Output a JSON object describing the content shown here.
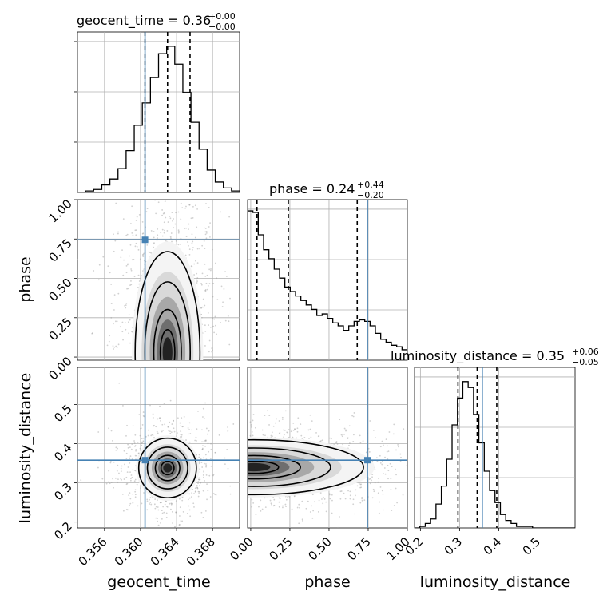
{
  "chart_data": {
    "type": "corner",
    "truth_color": "#4682b4",
    "parameters": [
      "geocent_time",
      "phase",
      "luminosity_distance"
    ],
    "truths": {
      "geocent_time": 0.3605,
      "phase": 0.745,
      "luminosity_distance": 0.358
    },
    "axis_labels": {
      "x": [
        "geocent_time",
        "phase",
        "luminosity_distance"
      ],
      "y": [
        "phase",
        "luminosity_distance"
      ]
    },
    "titles": [
      {
        "prefix": "geocent_time = 0.36",
        "plus": "+0.00",
        "minus": "−0.00"
      },
      {
        "prefix": "phase = 0.24",
        "plus": "+0.44",
        "minus": "−0.20"
      },
      {
        "prefix": "luminosity_distance = 0.35",
        "plus": "+0.06",
        "minus": "−0.05"
      }
    ],
    "ranges": {
      "geocent_time": [
        0.353,
        0.371
      ],
      "phase": [
        -0.02,
        1.0
      ],
      "luminosity_distance": [
        0.185,
        0.595
      ]
    },
    "ticks": {
      "geocent_time": {
        "values": [
          0.356,
          0.36,
          0.364,
          0.368
        ],
        "labels": [
          "0.356",
          "0.360",
          "0.364",
          "0.368"
        ]
      },
      "phase_x": {
        "values": [
          0.0,
          0.25,
          0.5,
          0.75,
          1.0
        ],
        "labels": [
          "0.00",
          "0.25",
          "0.50",
          "0.75",
          "1.00"
        ]
      },
      "phase_y": {
        "values": [
          0.0,
          0.25,
          0.5,
          0.75,
          1.0
        ],
        "labels": [
          "0.00",
          "0.25",
          "0.50",
          "0.75",
          "1.00"
        ]
      },
      "lumdist_x": {
        "values": [
          0.2,
          0.3,
          0.4,
          0.5
        ],
        "labels": [
          "0.2",
          "0.3",
          "0.4",
          "0.5"
        ]
      },
      "lumdist_y": {
        "values": [
          0.2,
          0.3,
          0.4,
          0.5
        ],
        "labels": [
          "0.2",
          "0.3",
          "0.4",
          "0.5"
        ]
      }
    },
    "histograms": [
      {
        "param": "geocent_time",
        "bin_start": 0.353,
        "bin_width": 0.0009,
        "counts": [
          0,
          0.01,
          0.02,
          0.05,
          0.09,
          0.16,
          0.28,
          0.45,
          0.6,
          0.77,
          0.93,
          0.98,
          0.86,
          0.67,
          0.47,
          0.29,
          0.15,
          0.07,
          0.03,
          0.01
        ],
        "quantiles": [
          0.3605,
          0.363,
          0.3655
        ]
      },
      {
        "param": "phase",
        "bin_start": -0.02,
        "bin_width": 0.034,
        "counts": [
          1.0,
          0.99,
          0.84,
          0.74,
          0.68,
          0.61,
          0.55,
          0.49,
          0.46,
          0.43,
          0.4,
          0.37,
          0.34,
          0.3,
          0.31,
          0.28,
          0.25,
          0.23,
          0.2,
          0.23,
          0.26,
          0.27,
          0.26,
          0.23,
          0.18,
          0.14,
          0.12,
          0.1,
          0.09,
          0.07
        ],
        "quantiles": [
          0.04,
          0.24,
          0.68
        ]
      },
      {
        "param": "luminosity_distance",
        "bin_start": 0.185,
        "bin_width": 0.0137,
        "counts": [
          0,
          0.01,
          0.03,
          0.06,
          0.16,
          0.28,
          0.46,
          0.69,
          0.87,
          0.98,
          0.94,
          0.76,
          0.57,
          0.38,
          0.25,
          0.17,
          0.09,
          0.05,
          0.03,
          0.01,
          0.01,
          0.01,
          0.0,
          0.0,
          0.0,
          0.0,
          0.0,
          0.0,
          0.0,
          0.0
        ],
        "quantiles": [
          0.296,
          0.345,
          0.395
        ]
      }
    ],
    "densities_2d": [
      {
        "x": "geocent_time",
        "y": "phase",
        "peak": [
          0.363,
          0.03
        ],
        "spread": [
          0.0018,
          0.32
        ]
      },
      {
        "x": "geocent_time",
        "y": "luminosity_distance",
        "peak": [
          0.363,
          0.338
        ],
        "spread": [
          0.0016,
          0.038
        ]
      },
      {
        "x": "phase",
        "y": "luminosity_distance",
        "peak": [
          0.02,
          0.34
        ],
        "spread": [
          0.35,
          0.035
        ]
      }
    ]
  }
}
